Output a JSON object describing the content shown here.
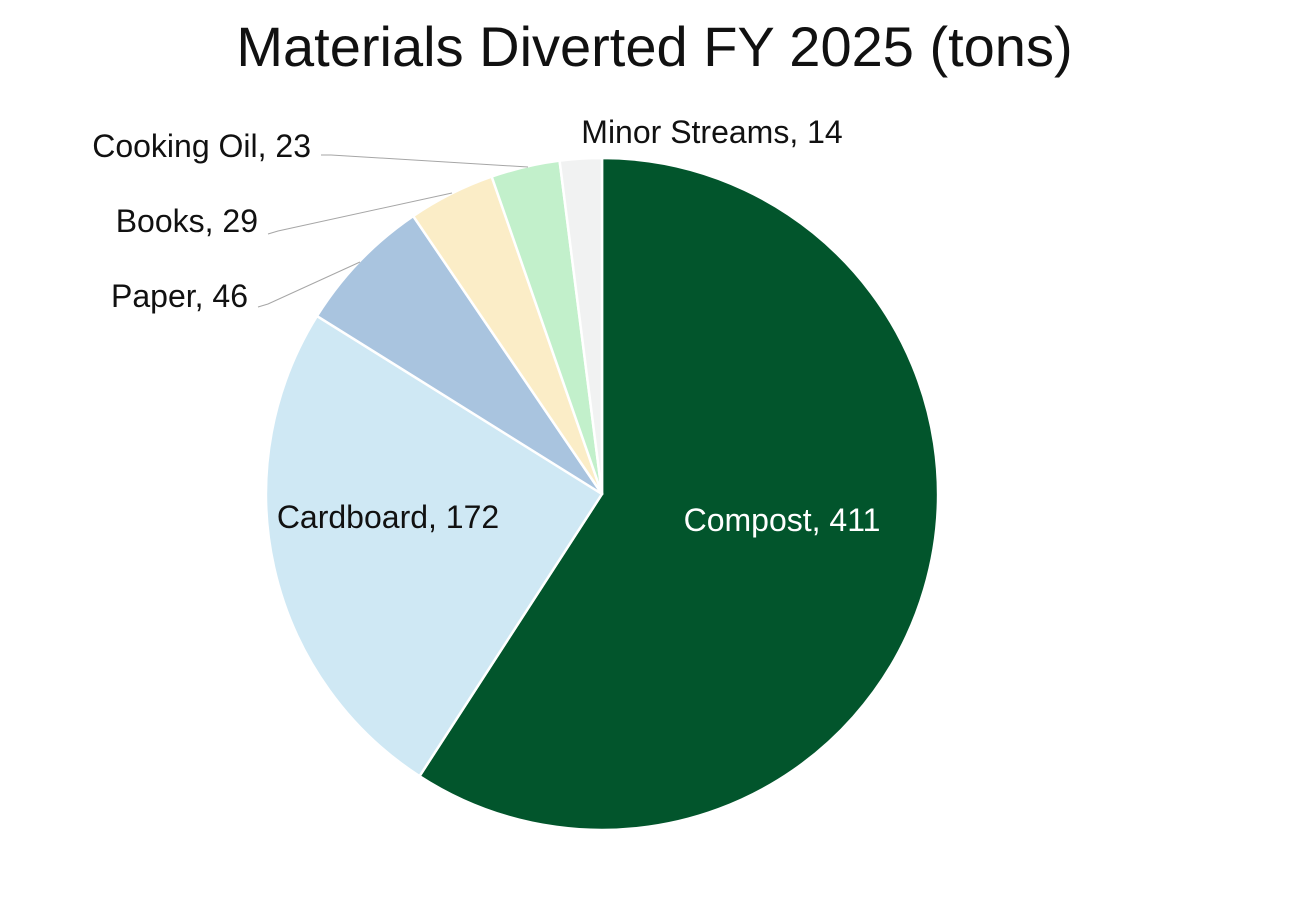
{
  "chart_data": {
    "type": "pie",
    "title": "Materials Diverted FY 2025 (tons)",
    "start_angle_deg": 0,
    "direction": "clockwise",
    "slices": [
      {
        "name": "Compost",
        "value": 411,
        "color": "#02552C",
        "label": "Compost, 411",
        "label_color": "#ffffff"
      },
      {
        "name": "Cardboard",
        "value": 172,
        "color": "#CFE8F4",
        "label": "Cardboard, 172",
        "label_color": "#111111"
      },
      {
        "name": "Paper",
        "value": 46,
        "color": "#A9C4DF",
        "label": "Paper, 46",
        "label_color": "#111111"
      },
      {
        "name": "Books",
        "value": 29,
        "color": "#FBEDC7",
        "label": "Books, 29",
        "label_color": "#111111"
      },
      {
        "name": "Cooking Oil",
        "value": 23,
        "color": "#C2F0CB",
        "label": "Cooking Oil, 23",
        "label_color": "#111111"
      },
      {
        "name": "Minor Streams",
        "value": 14,
        "color": "#F1F2F2",
        "label": "Minor Streams, 14",
        "label_color": "#111111"
      }
    ]
  }
}
